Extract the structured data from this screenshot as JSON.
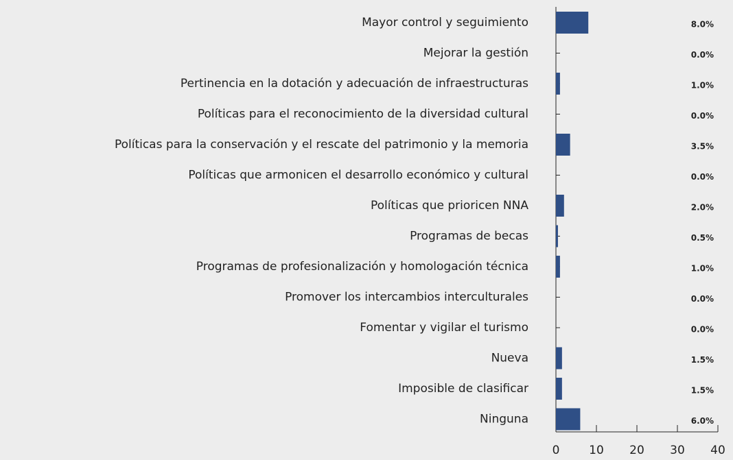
{
  "chart_data": {
    "type": "barh",
    "categories": [
      "Mayor control y seguimiento",
      "Mejorar la gestión",
      "Pertinencia en la dotación y adecuación de infraestructuras",
      "Políticas para el reconocimiento de la diversidad cultural",
      "Políticas para la conservación y el rescate del patrimonio y la memoria",
      "Políticas que armonicen el desarrollo económico y cultural",
      "Políticas que prioricen NNA",
      "Programas de becas",
      "Programas de profesionalización y homologación técnica",
      "Promover los intercambios interculturales",
      "Fomentar y vigilar el turismo",
      "Nueva",
      "Imposible de clasificar",
      "Ninguna"
    ],
    "values": [
      8.0,
      0.0,
      1.0,
      0.0,
      3.5,
      0.0,
      2.0,
      0.5,
      1.0,
      0.0,
      0.0,
      1.5,
      1.5,
      6.0
    ],
    "value_labels": [
      "8.0%",
      "0.0%",
      "1.0%",
      "0.0%",
      "3.5%",
      "0.0%",
      "2.0%",
      "0.5%",
      "1.0%",
      "0.0%",
      "0.0%",
      "1.5%",
      "1.5%",
      "6.0%"
    ],
    "color": "#2f4f86",
    "xlim": [
      0,
      40
    ],
    "xticks": [
      0,
      10,
      20,
      30,
      40
    ]
  }
}
